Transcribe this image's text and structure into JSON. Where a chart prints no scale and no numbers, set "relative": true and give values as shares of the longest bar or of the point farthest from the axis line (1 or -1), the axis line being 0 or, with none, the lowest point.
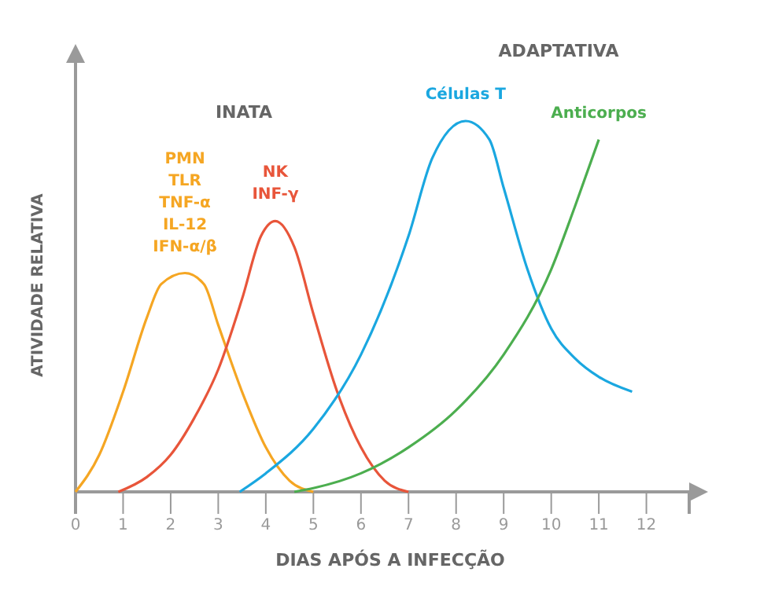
{
  "chart_data": {
    "type": "line",
    "relative": true,
    "xlabel": "DIAS APÓS A INFECÇÃO",
    "ylabel": "ATIVIDADE RELATIVA",
    "xlim": [
      0,
      12.9
    ],
    "xticks": [
      0,
      1,
      2,
      3,
      4,
      5,
      6,
      7,
      8,
      9,
      10,
      11,
      12
    ],
    "marker": "none",
    "line_style": "solid",
    "annotations": [
      "INATA",
      "ADAPTATIVA"
    ],
    "series": [
      {
        "name": "PMN\nTLR\nTNF-α\nIL-12\nIFN-α/β",
        "color": "#f5a623",
        "x": [
          0,
          0.5,
          1,
          1.5,
          1.8,
          2.3,
          2.7,
          3,
          3.5,
          4,
          4.5,
          5
        ],
        "values": [
          0,
          0.1,
          0.27,
          0.47,
          0.56,
          0.59,
          0.56,
          0.45,
          0.27,
          0.12,
          0.03,
          0
        ]
      },
      {
        "name": "NK\nINF-γ",
        "color": "#e8553a",
        "x": [
          0.9,
          1.5,
          2,
          2.5,
          3,
          3.5,
          3.9,
          4.2,
          4.6,
          5,
          5.5,
          6,
          6.5,
          7
        ],
        "values": [
          0,
          0.04,
          0.1,
          0.2,
          0.33,
          0.52,
          0.69,
          0.73,
          0.66,
          0.48,
          0.27,
          0.12,
          0.03,
          0
        ]
      },
      {
        "name": "Células T",
        "color": "#1aa7e0",
        "x": [
          3.45,
          4,
          5,
          6,
          7,
          7.5,
          8.2,
          8.7,
          9,
          9.5,
          10,
          10.5,
          11,
          11.7
        ],
        "values": [
          0,
          0.05,
          0.17,
          0.37,
          0.69,
          0.9,
          1,
          0.95,
          0.82,
          0.6,
          0.44,
          0.36,
          0.31,
          0.27
        ]
      },
      {
        "name": "Anticorpos",
        "color": "#4cae4f",
        "x": [
          4.6,
          5,
          6,
          7,
          8,
          9,
          10,
          10.5,
          11
        ],
        "values": [
          0,
          0.01,
          0.05,
          0.12,
          0.22,
          0.37,
          0.6,
          0.77,
          0.95
        ]
      }
    ]
  }
}
